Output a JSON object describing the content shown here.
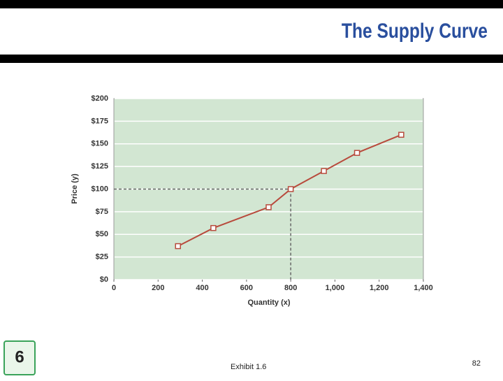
{
  "chart_data": {
    "type": "line",
    "title": "The Supply Curve",
    "x_label": "Quantity (x)",
    "y_label": "Price (y)",
    "x": [
      290,
      450,
      700,
      800,
      950,
      1100,
      1300
    ],
    "series": [
      {
        "color": "#b84a3c",
        "values": [
          37,
          57,
          80,
          100,
          120,
          140,
          160
        ]
      }
    ],
    "xlim": [
      0,
      1400
    ],
    "ylim": [
      0,
      200
    ],
    "xticks": [
      0,
      200,
      400,
      600,
      800,
      {
        "value": 1000,
        "label": "1,000"
      },
      {
        "value": 1200,
        "label": "1,200"
      },
      {
        "value": 1400,
        "label": "1,400"
      }
    ],
    "yticks": [
      {
        "value": 0,
        "label": "$0"
      },
      {
        "value": 25,
        "label": "$25"
      },
      {
        "value": 50,
        "label": "$50"
      },
      {
        "value": 75,
        "label": "$75"
      },
      {
        "value": 100,
        "label": "$100"
      },
      {
        "value": 125,
        "label": "$125"
      },
      {
        "value": 150,
        "label": "$150"
      },
      {
        "value": 175,
        "label": "$175"
      },
      {
        "value": 200,
        "label": "$200"
      }
    ],
    "grid": true,
    "highlight_index": 3
  },
  "footer": {
    "slide_number": "6",
    "caption": "Exhibit 1.6",
    "page": "82"
  }
}
